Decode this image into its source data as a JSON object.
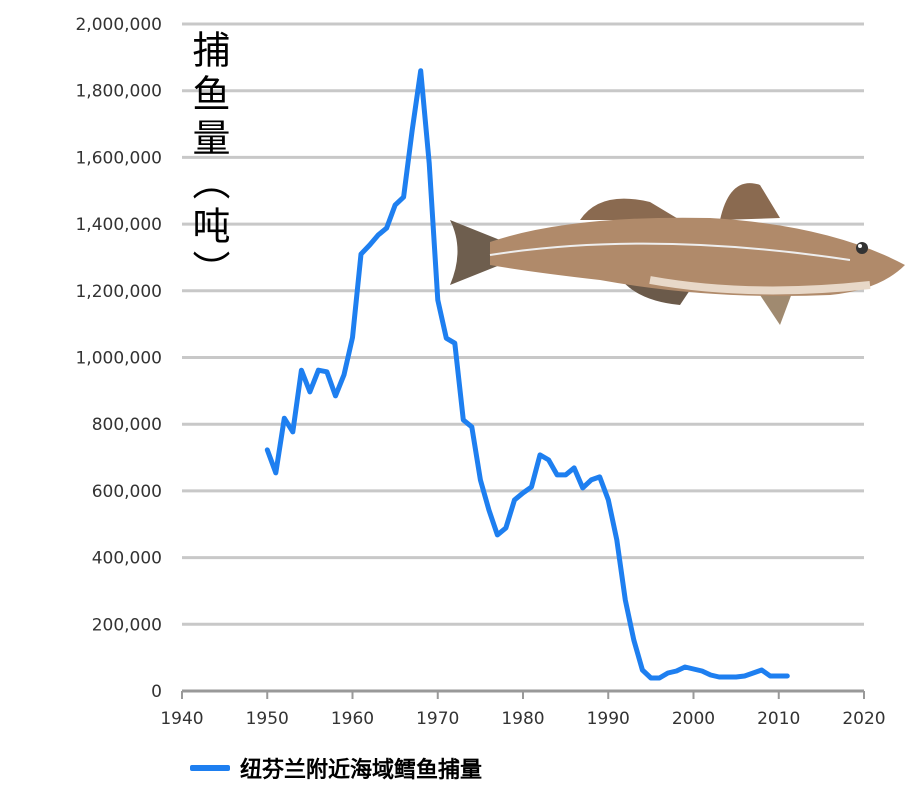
{
  "chart_data": {
    "type": "line",
    "title": "",
    "ylabel": "捕鱼量（吨）",
    "xlabel": "",
    "xlim": [
      1940,
      2020
    ],
    "ylim": [
      0,
      2000000
    ],
    "xticks": [
      "1940",
      "1950",
      "1960",
      "1970",
      "1980",
      "1990",
      "2000",
      "2010",
      "2020"
    ],
    "yticks": [
      "0",
      "200,000",
      "400,000",
      "600,000",
      "800,000",
      "1,000,000",
      "1,200,000",
      "1,400,000",
      "1,600,000",
      "1,800,000",
      "2,000,000"
    ],
    "grid": true,
    "legend_position": "bottom-left",
    "series": [
      {
        "name": "纽芬兰附近海域鳕鱼捕量",
        "color": "#1E7FF0",
        "x": [
          1950,
          1951,
          1952,
          1953,
          1954,
          1955,
          1956,
          1957,
          1958,
          1959,
          1960,
          1961,
          1962,
          1963,
          1964,
          1965,
          1966,
          1967,
          1968,
          1969,
          1970,
          1971,
          1972,
          1973,
          1974,
          1975,
          1976,
          1977,
          1978,
          1979,
          1980,
          1981,
          1982,
          1983,
          1984,
          1985,
          1986,
          1987,
          1988,
          1989,
          1990,
          1991,
          1992,
          1993,
          1994,
          1995,
          1996,
          1997,
          1998,
          1999,
          2000,
          2001,
          2002,
          2003,
          2004,
          2005,
          2006,
          2007,
          2008,
          2009,
          2010,
          2011
        ],
        "values": [
          723000,
          654000,
          818000,
          777000,
          962000,
          897000,
          962000,
          957000,
          885000,
          948000,
          1060000,
          1310000,
          1337000,
          1367000,
          1388000,
          1457000,
          1481000,
          1682000,
          1860000,
          1583000,
          1172000,
          1058000,
          1043000,
          813000,
          792000,
          633000,
          543000,
          468000,
          489000,
          573000,
          594000,
          612000,
          708000,
          693000,
          648000,
          648000,
          669000,
          609000,
          633000,
          642000,
          573000,
          453000,
          273000,
          153000,
          63000,
          39000,
          39000,
          54000,
          60000,
          72000,
          66000,
          60000,
          48000,
          42000,
          42000,
          42000,
          45000,
          54000,
          63000,
          45000,
          45000,
          45000
        ]
      }
    ],
    "annotation_image": "cod-fish-illustration"
  }
}
